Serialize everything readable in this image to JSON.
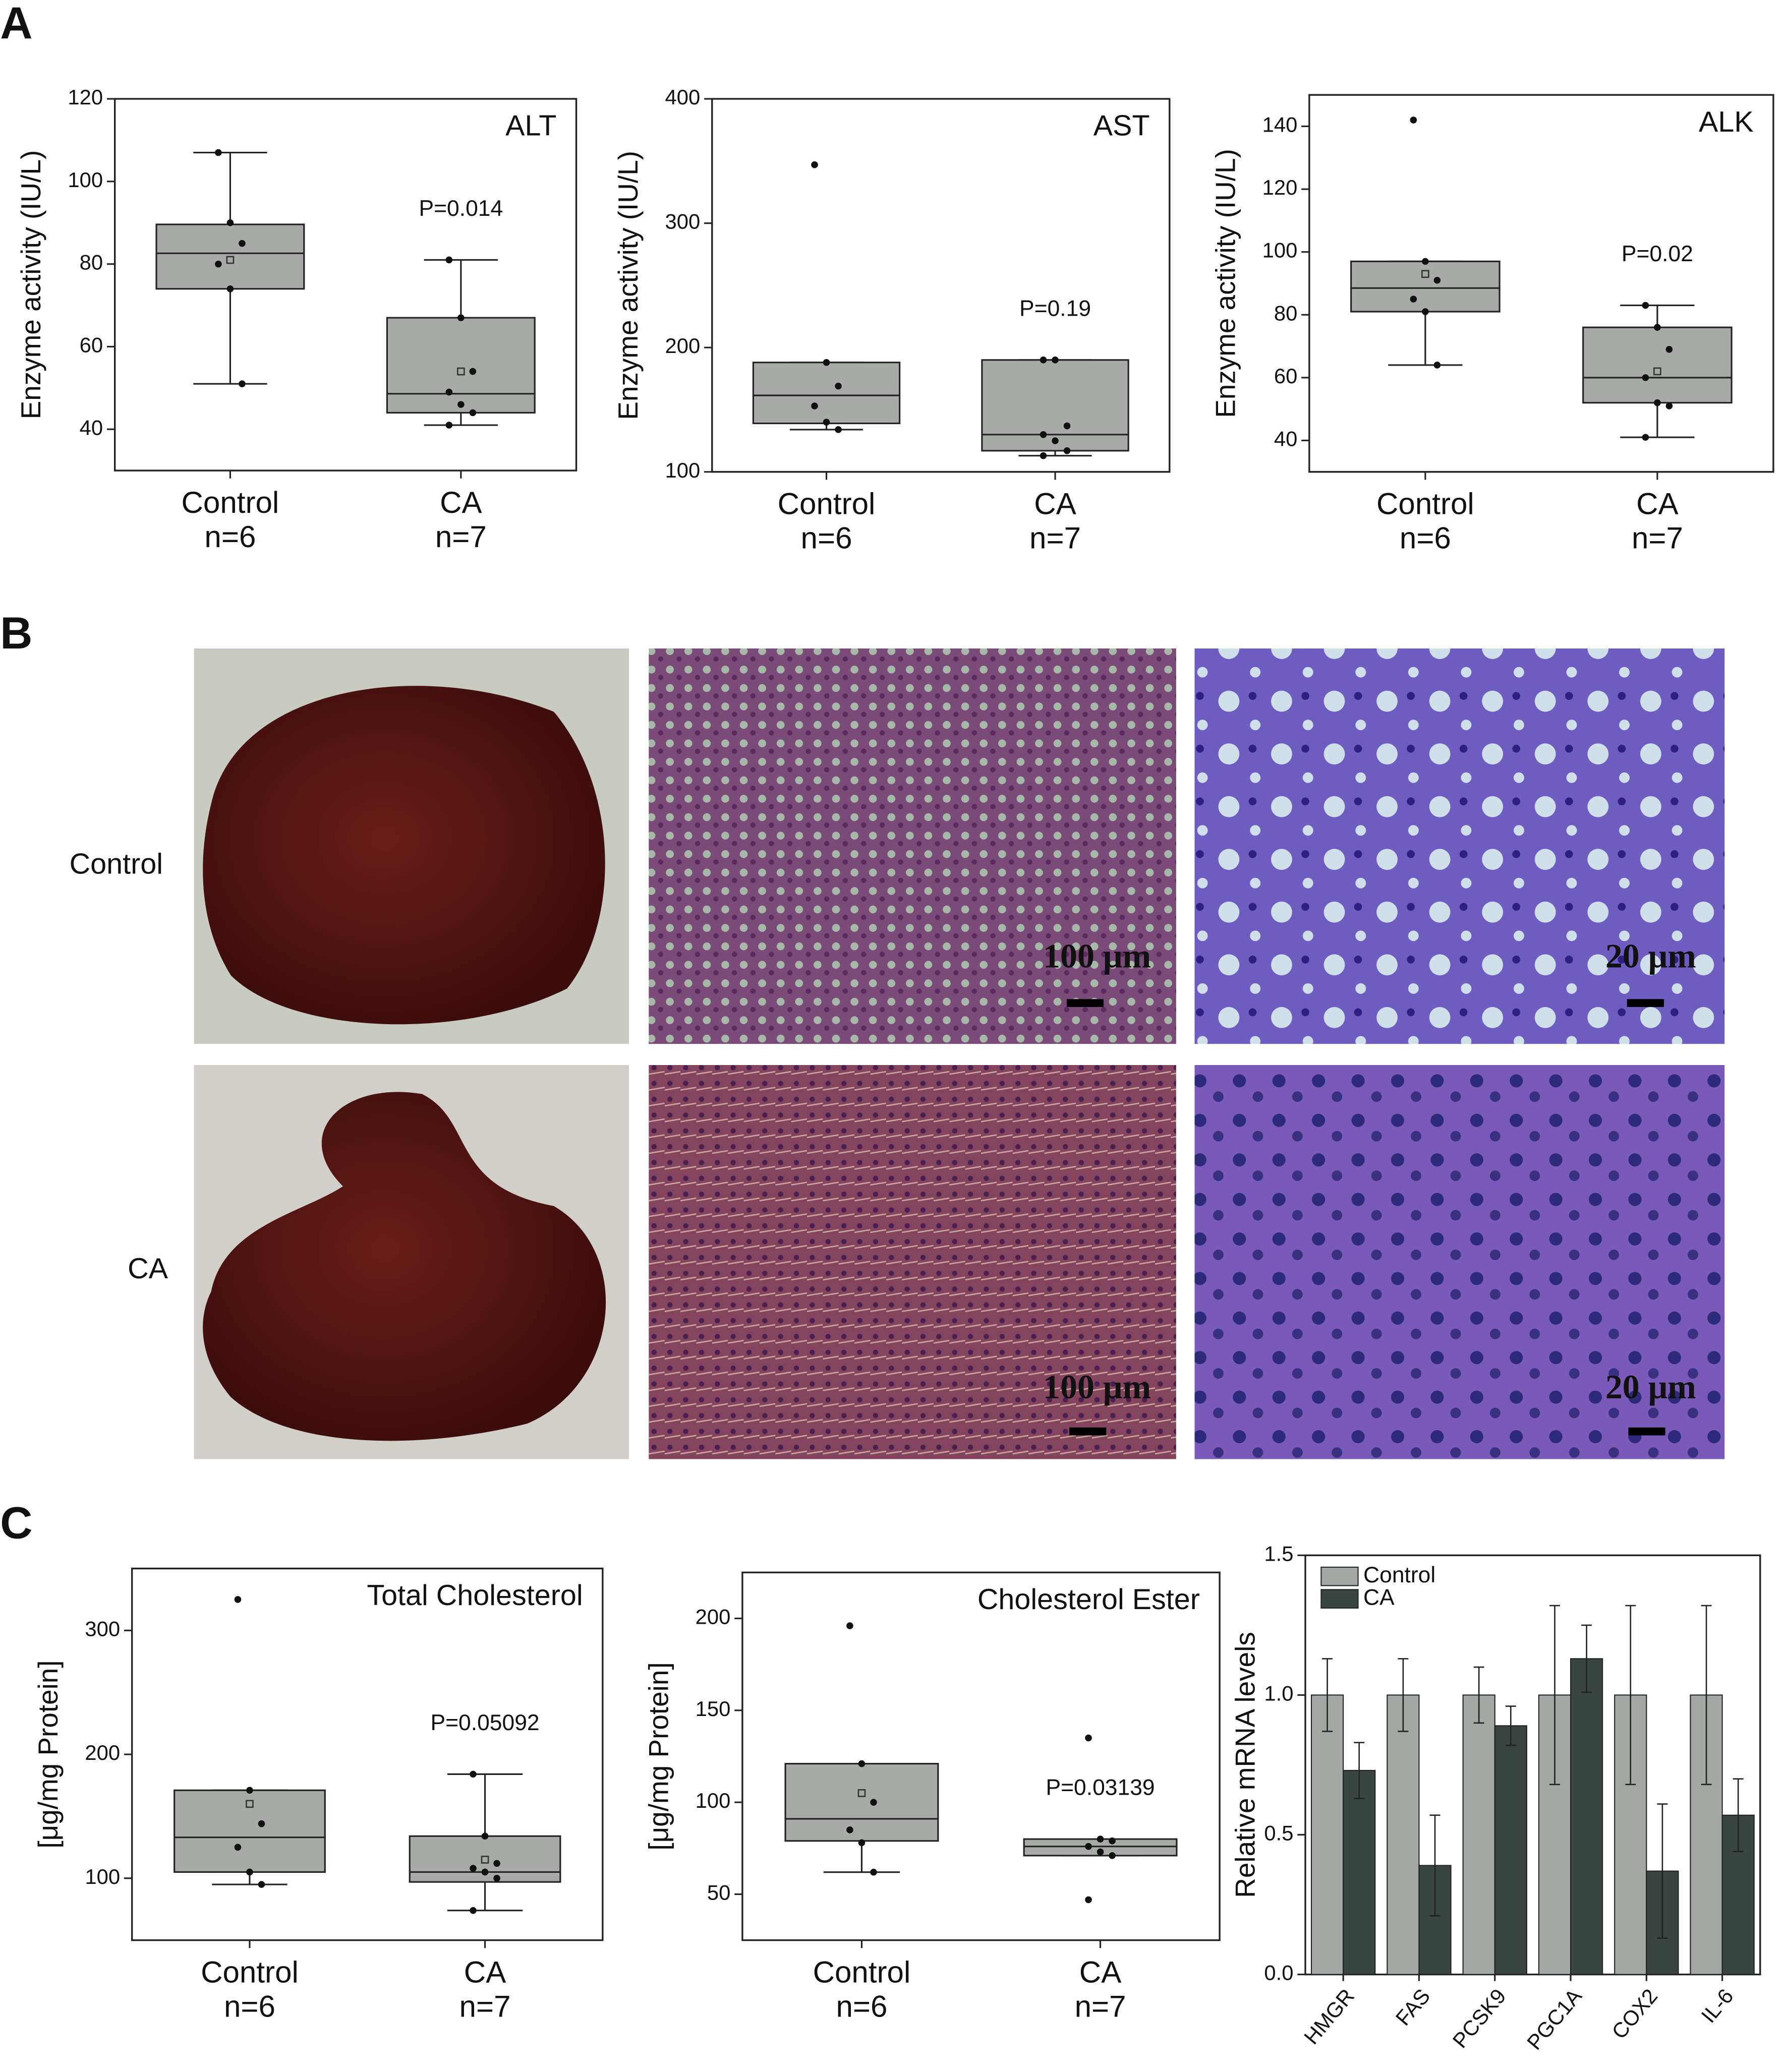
{
  "panel_labels": [
    "A",
    "B",
    "C"
  ],
  "image_panel": {
    "row_labels": [
      "Control",
      "CA"
    ],
    "scale_bars": [
      "100 μm",
      "20 μm",
      "100 μm",
      "20 μm"
    ]
  },
  "chart_data": [
    {
      "type": "box",
      "title": "ALT",
      "ylabel": "Enzyme activity (IU/L)",
      "annotation": "P=0.014",
      "categories": [
        "Control",
        "CA"
      ],
      "n_labels": [
        "n=6",
        "n=7"
      ],
      "color": "#a8aaa8",
      "ylim": [
        30,
        120
      ],
      "yticks": [
        40,
        60,
        80,
        100,
        120
      ],
      "boxes": [
        {
          "q1": 74,
          "median": 82.6,
          "q3": 89.6,
          "whisker_low": 51,
          "whisker_high": 107,
          "mean": 81,
          "points": [
            107,
            90,
            85,
            80,
            74,
            51
          ]
        },
        {
          "q1": 44,
          "median": 48.6,
          "q3": 67,
          "whisker_low": 41,
          "whisker_high": 81,
          "mean": 54,
          "points": [
            81,
            67,
            54,
            49,
            46,
            44,
            41
          ]
        }
      ]
    },
    {
      "type": "box",
      "title": "AST",
      "ylabel": "Enzyme activity (IU/L)",
      "annotation": "P=0.19",
      "categories": [
        "Control",
        "CA"
      ],
      "n_labels": [
        "n=6",
        "n=7"
      ],
      "color": "#a8aaa8",
      "ylim": [
        100,
        400
      ],
      "yticks": [
        100,
        200,
        300,
        400
      ],
      "boxes": [
        {
          "q1": 139,
          "median": 161.5,
          "q3": 188,
          "whisker_low": 134,
          "whisker_high": 188,
          "points": [
            347,
            188,
            169,
            153,
            140,
            134
          ]
        },
        {
          "q1": 117,
          "median": 130,
          "q3": 190,
          "whisker_low": 113,
          "whisker_high": 190,
          "points": [
            190,
            190,
            137,
            130,
            125,
            117,
            113
          ]
        }
      ]
    },
    {
      "type": "box",
      "title": "ALK",
      "ylabel": "Enzyme activity (IU/L)",
      "annotation": "P=0.02",
      "categories": [
        "Control",
        "CA"
      ],
      "n_labels": [
        "n=6",
        "n=7"
      ],
      "color": "#a8aaa8",
      "ylim": [
        30,
        150
      ],
      "yticks": [
        40,
        60,
        80,
        100,
        120,
        140
      ],
      "boxes": [
        {
          "q1": 81,
          "median": 88.5,
          "q3": 97,
          "whisker_low": 64,
          "whisker_high": 97,
          "mean": 93,
          "points": [
            142,
            97,
            91,
            85,
            81,
            64
          ]
        },
        {
          "q1": 52,
          "median": 60,
          "q3": 76,
          "whisker_low": 41,
          "whisker_high": 83,
          "mean": 62,
          "points": [
            83,
            76,
            69,
            60,
            52,
            51,
            41
          ]
        }
      ]
    },
    {
      "type": "box",
      "title": "Total Cholesterol",
      "ylabel": "[μg/mg Protein]",
      "annotation": "P=0.05092",
      "categories": [
        "Control",
        "CA"
      ],
      "n_labels": [
        "n=6",
        "n=7"
      ],
      "color": "#a8aaa8",
      "ylim": [
        50,
        350
      ],
      "yticks": [
        100,
        200,
        300
      ],
      "boxes": [
        {
          "q1": 105,
          "median": 133,
          "q3": 171,
          "whisker_low": 95,
          "whisker_high": 171,
          "mean": 160,
          "points": [
            325,
            171,
            144,
            125,
            105,
            95
          ]
        },
        {
          "q1": 97,
          "median": 105,
          "q3": 134,
          "whisker_low": 74,
          "whisker_high": 184,
          "mean": 115,
          "points": [
            184,
            134,
            112,
            108,
            105,
            100,
            74
          ]
        }
      ]
    },
    {
      "type": "box",
      "title": "Cholesterol Ester",
      "ylabel": "[μg/mg Protein]",
      "annotation": "P=0.03139",
      "categories": [
        "Control",
        "CA"
      ],
      "n_labels": [
        "n=6",
        "n=7"
      ],
      "color": "#a8aaa8",
      "ylim": [
        25,
        225
      ],
      "yticks": [
        50,
        100,
        150,
        200
      ],
      "boxes": [
        {
          "q1": 79,
          "median": 91,
          "q3": 121,
          "whisker_low": 62,
          "whisker_high": 121,
          "mean": 105,
          "points": [
            196,
            121,
            100,
            85,
            78,
            62
          ]
        },
        {
          "q1": 71,
          "median": 76,
          "q3": 80,
          "whisker_low": 71,
          "whisker_high": 80,
          "points": [
            135,
            80,
            79,
            76,
            73,
            71,
            47
          ]
        }
      ]
    },
    {
      "type": "bar",
      "ylabel": "Relative mRNA levels",
      "legend": "upper left",
      "categories": [
        "HMGR",
        "FAS",
        "PCSK9",
        "PGC1A",
        "COX2",
        "IL-6"
      ],
      "ylim": [
        0,
        1.5
      ],
      "yticks": [
        {
          "value": 0,
          "label": "0.0"
        },
        0.5,
        {
          "value": 1,
          "label": "1.0"
        },
        1.5
      ],
      "series": [
        {
          "name": "Control",
          "color": "#a3a8a4",
          "values": [
            1,
            1,
            1,
            1,
            1,
            1
          ],
          "errors": [
            0.13,
            0.13,
            0.1,
            0.32,
            0.32,
            0.32
          ]
        },
        {
          "name": "CA",
          "color": "#3a4440",
          "values": [
            0.73,
            0.39,
            0.89,
            1.13,
            0.37,
            0.57
          ],
          "errors": [
            0.1,
            0.18,
            0.07,
            0.12,
            0.24,
            0.13
          ]
        }
      ]
    }
  ]
}
